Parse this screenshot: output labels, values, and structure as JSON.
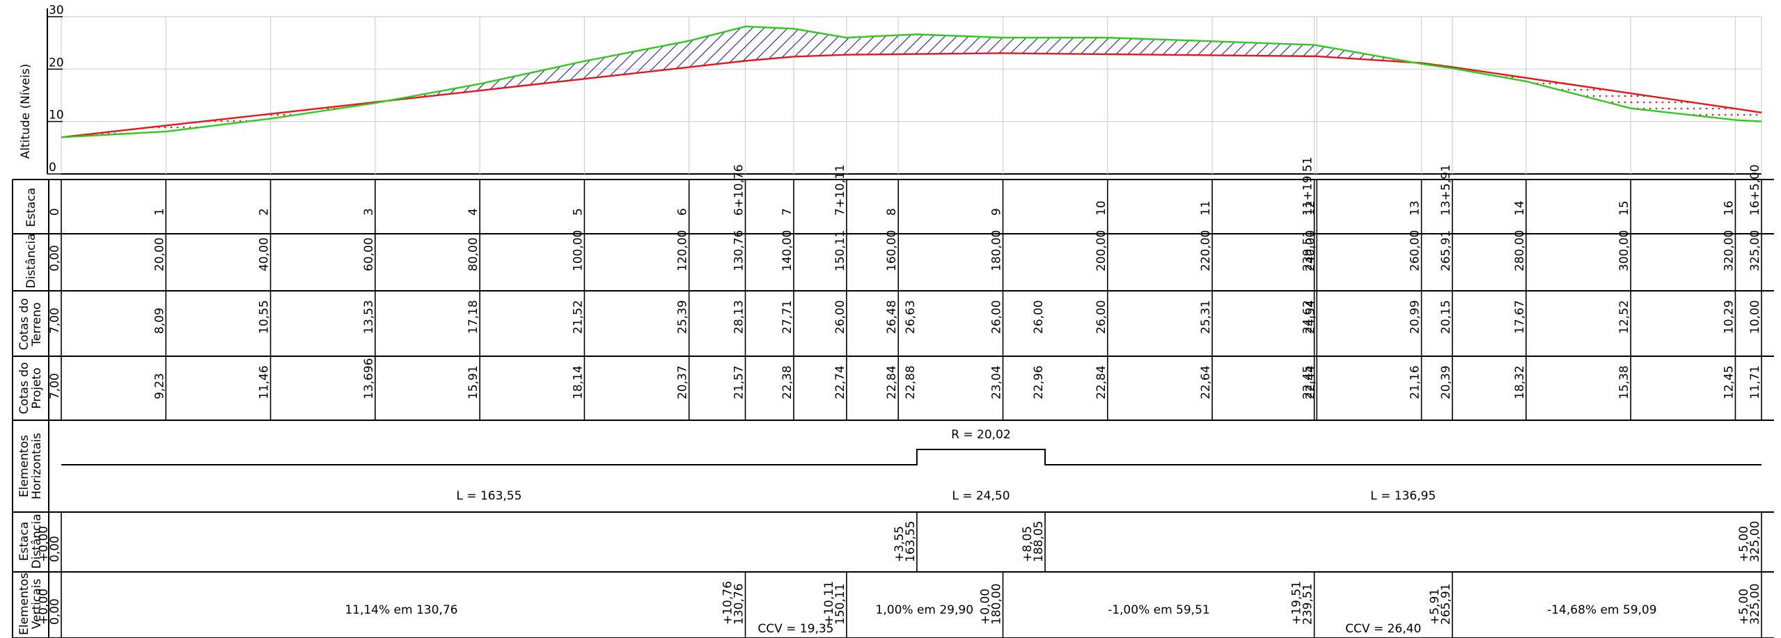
{
  "chart": {
    "ylabel": "Altitude (Níveis)",
    "y_ticks": [
      "0",
      "10",
      "20",
      "30"
    ],
    "ylim": [
      0,
      30
    ],
    "colors": {
      "terrain": "#2ecc1a",
      "project": "#e8161b",
      "cut_hatch": "#1a1ac8",
      "fill_dots": "#e8161b",
      "grid": "#d0d0d0"
    }
  },
  "chart_data": {
    "type": "line",
    "x_unit": "distance",
    "series": [
      {
        "name": "",
        "role": "terrain",
        "x": [
          0,
          20,
          40,
          60,
          80,
          100,
          120,
          130.76,
          140,
          150.11,
          160,
          163.55,
          180,
          188.05,
          200,
          220,
          239.51,
          240,
          260,
          265.91,
          280,
          300,
          320,
          325
        ],
        "y": [
          7.0,
          8.09,
          10.55,
          13.53,
          17.18,
          21.52,
          25.39,
          28.13,
          27.71,
          26.0,
          26.48,
          26.63,
          26.0,
          26.0,
          26.0,
          25.31,
          24.62,
          24.54,
          20.99,
          20.15,
          17.67,
          12.52,
          10.29,
          10.0
        ]
      },
      {
        "name": "",
        "role": "project",
        "x": [
          0,
          20,
          40,
          60,
          80,
          100,
          120,
          130.76,
          140,
          150.11,
          160,
          163.55,
          180,
          188.05,
          200,
          220,
          239.51,
          240,
          260,
          265.91,
          280,
          300,
          320,
          325
        ],
        "y": [
          7.0,
          9.23,
          11.46,
          13.696,
          15.91,
          18.14,
          20.37,
          21.57,
          22.38,
          22.74,
          22.84,
          22.88,
          23.04,
          22.96,
          22.84,
          22.64,
          22.45,
          22.44,
          21.16,
          20.39,
          18.32,
          15.38,
          12.45,
          11.71
        ]
      }
    ]
  },
  "rows": {
    "estaca": {
      "label": "Estaca",
      "items": [
        {
          "x": 0,
          "t": "0"
        },
        {
          "x": 20,
          "t": "1"
        },
        {
          "x": 40,
          "t": "2"
        },
        {
          "x": 60,
          "t": "3"
        },
        {
          "x": 80,
          "t": "4"
        },
        {
          "x": 100,
          "t": "5"
        },
        {
          "x": 120,
          "t": "6"
        },
        {
          "x": 130.76,
          "t": "6+10,76"
        },
        {
          "x": 140,
          "t": "7"
        },
        {
          "x": 150.11,
          "t": "7+10,11"
        },
        {
          "x": 160,
          "t": "8"
        },
        {
          "x": 180,
          "t": "9"
        },
        {
          "x": 200,
          "t": "10"
        },
        {
          "x": 220,
          "t": "11"
        },
        {
          "x": 239.51,
          "t": "11+19,51"
        },
        {
          "x": 240,
          "t": "12"
        },
        {
          "x": 260,
          "t": "13"
        },
        {
          "x": 265.91,
          "t": "13+5,91"
        },
        {
          "x": 280,
          "t": "14"
        },
        {
          "x": 300,
          "t": "15"
        },
        {
          "x": 320,
          "t": "16"
        },
        {
          "x": 325,
          "t": "16+5,00"
        }
      ]
    },
    "distancia": {
      "label": "Distância",
      "items": [
        {
          "x": 0,
          "t": "0,00"
        },
        {
          "x": 20,
          "t": "20,00"
        },
        {
          "x": 40,
          "t": "40,00"
        },
        {
          "x": 60,
          "t": "60,00"
        },
        {
          "x": 80,
          "t": "80,00"
        },
        {
          "x": 100,
          "t": "100,00"
        },
        {
          "x": 120,
          "t": "120,00"
        },
        {
          "x": 130.76,
          "t": "130,76"
        },
        {
          "x": 140,
          "t": "140,00"
        },
        {
          "x": 150.11,
          "t": "150,11"
        },
        {
          "x": 160,
          "t": "160,00"
        },
        {
          "x": 180,
          "t": "180,00"
        },
        {
          "x": 200,
          "t": "200,00"
        },
        {
          "x": 220,
          "t": "220,00"
        },
        {
          "x": 239.51,
          "t": "239,51"
        },
        {
          "x": 240,
          "t": "240,00"
        },
        {
          "x": 260,
          "t": "260,00"
        },
        {
          "x": 265.91,
          "t": "265,91"
        },
        {
          "x": 280,
          "t": "280,00"
        },
        {
          "x": 300,
          "t": "300,00"
        },
        {
          "x": 320,
          "t": "320,00"
        },
        {
          "x": 325,
          "t": "325,00"
        }
      ]
    },
    "cotas_terreno": {
      "label_1": "Cotas do",
      "label_2": "Terreno",
      "items": [
        {
          "x": 0,
          "t": "7,00"
        },
        {
          "x": 20,
          "t": "8,09"
        },
        {
          "x": 40,
          "t": "10,55"
        },
        {
          "x": 60,
          "t": "13,53"
        },
        {
          "x": 80,
          "t": "17,18"
        },
        {
          "x": 100,
          "t": "21,52"
        },
        {
          "x": 120,
          "t": "25,39"
        },
        {
          "x": 130.76,
          "t": "28,13"
        },
        {
          "x": 140,
          "t": "27,71"
        },
        {
          "x": 150.11,
          "t": "26,00"
        },
        {
          "x": 160,
          "t": "26,48"
        },
        {
          "x": 163.55,
          "t": "26,63"
        },
        {
          "x": 180,
          "t": "26,00"
        },
        {
          "x": 188.05,
          "t": "26,00"
        },
        {
          "x": 200,
          "t": "26,00"
        },
        {
          "x": 220,
          "t": "25,31"
        },
        {
          "x": 239.51,
          "t": "24,62"
        },
        {
          "x": 240,
          "t": "24,54"
        },
        {
          "x": 260,
          "t": "20,99"
        },
        {
          "x": 265.91,
          "t": "20,15"
        },
        {
          "x": 280,
          "t": "17,67"
        },
        {
          "x": 300,
          "t": "12,52"
        },
        {
          "x": 320,
          "t": "10,29"
        },
        {
          "x": 325,
          "t": "10,00"
        }
      ]
    },
    "cotas_projeto": {
      "label_1": "Cotas do",
      "label_2": "Projeto",
      "items": [
        {
          "x": 0,
          "t": "7,00"
        },
        {
          "x": 20,
          "t": "9,23"
        },
        {
          "x": 40,
          "t": "11,46"
        },
        {
          "x": 60,
          "t": "13,696"
        },
        {
          "x": 80,
          "t": "15,91"
        },
        {
          "x": 100,
          "t": "18,14"
        },
        {
          "x": 120,
          "t": "20,37"
        },
        {
          "x": 130.76,
          "t": "21,57"
        },
        {
          "x": 140,
          "t": "22,38"
        },
        {
          "x": 150.11,
          "t": "22,74"
        },
        {
          "x": 160,
          "t": "22,84"
        },
        {
          "x": 163.55,
          "t": "22,88"
        },
        {
          "x": 180,
          "t": "23,04"
        },
        {
          "x": 188.05,
          "t": "22,96"
        },
        {
          "x": 200,
          "t": "22,84"
        },
        {
          "x": 220,
          "t": "22,64"
        },
        {
          "x": 239.51,
          "t": "22,45"
        },
        {
          "x": 240,
          "t": "22,44"
        },
        {
          "x": 260,
          "t": "21,16"
        },
        {
          "x": 265.91,
          "t": "20,39"
        },
        {
          "x": 280,
          "t": "18,32"
        },
        {
          "x": 300,
          "t": "15,38"
        },
        {
          "x": 320,
          "t": "12,45"
        },
        {
          "x": 325,
          "t": "11,71"
        }
      ]
    },
    "elementos_horizontais": {
      "label_1": "Elementos",
      "label_2": "Horizontais",
      "curve_start": 163.55,
      "curve_end": 188.05,
      "radius_label": "R = 20,02",
      "lengths": [
        {
          "x": 81.775,
          "t": "L = 163,55"
        },
        {
          "x": 175.8,
          "t": "L = 24,50"
        },
        {
          "x": 256.5,
          "t": "L = 136,95"
        }
      ]
    },
    "estaca_distancia": {
      "label_1": "Estaca",
      "label_2": "Distância",
      "items": [
        {
          "x": 0,
          "a": "+0,00",
          "b": "0,00"
        },
        {
          "x": 163.55,
          "a": "+3,55",
          "b": "163,55"
        },
        {
          "x": 188.05,
          "a": "+8,05",
          "b": "188,05"
        },
        {
          "x": 325,
          "a": "+5,00",
          "b": "325,00"
        }
      ]
    },
    "elementos_verticais": {
      "label_1": "Elementos",
      "label_2": "Verticais",
      "items": [
        {
          "x": 0,
          "a": "+0,00",
          "b": "0,00"
        },
        {
          "x": 130.76,
          "a": "+10,76",
          "b": "130,76"
        },
        {
          "x": 150.11,
          "a": "+10,11",
          "b": "150,11"
        },
        {
          "x": 180,
          "a": "+0,00",
          "b": "180,00"
        },
        {
          "x": 239.51,
          "a": "+19,51",
          "b": "239,51"
        },
        {
          "x": 265.91,
          "a": "+5,91",
          "b": "265,91"
        },
        {
          "x": 325,
          "a": "+5,00",
          "b": "325,00"
        }
      ],
      "grades": [
        {
          "x": 65,
          "t": "11,14% em 130,76"
        },
        {
          "x": 165,
          "t": "1,00% em 29,90"
        },
        {
          "x": 209.8,
          "t": "-1,00% em 59,51"
        },
        {
          "x": 294.5,
          "t": "-14,68% em 59,09"
        }
      ],
      "ccv": [
        {
          "x": 140.4,
          "t": "CCV = 19,35"
        },
        {
          "x": 252.7,
          "t": "CCV = 26,40"
        }
      ]
    }
  }
}
